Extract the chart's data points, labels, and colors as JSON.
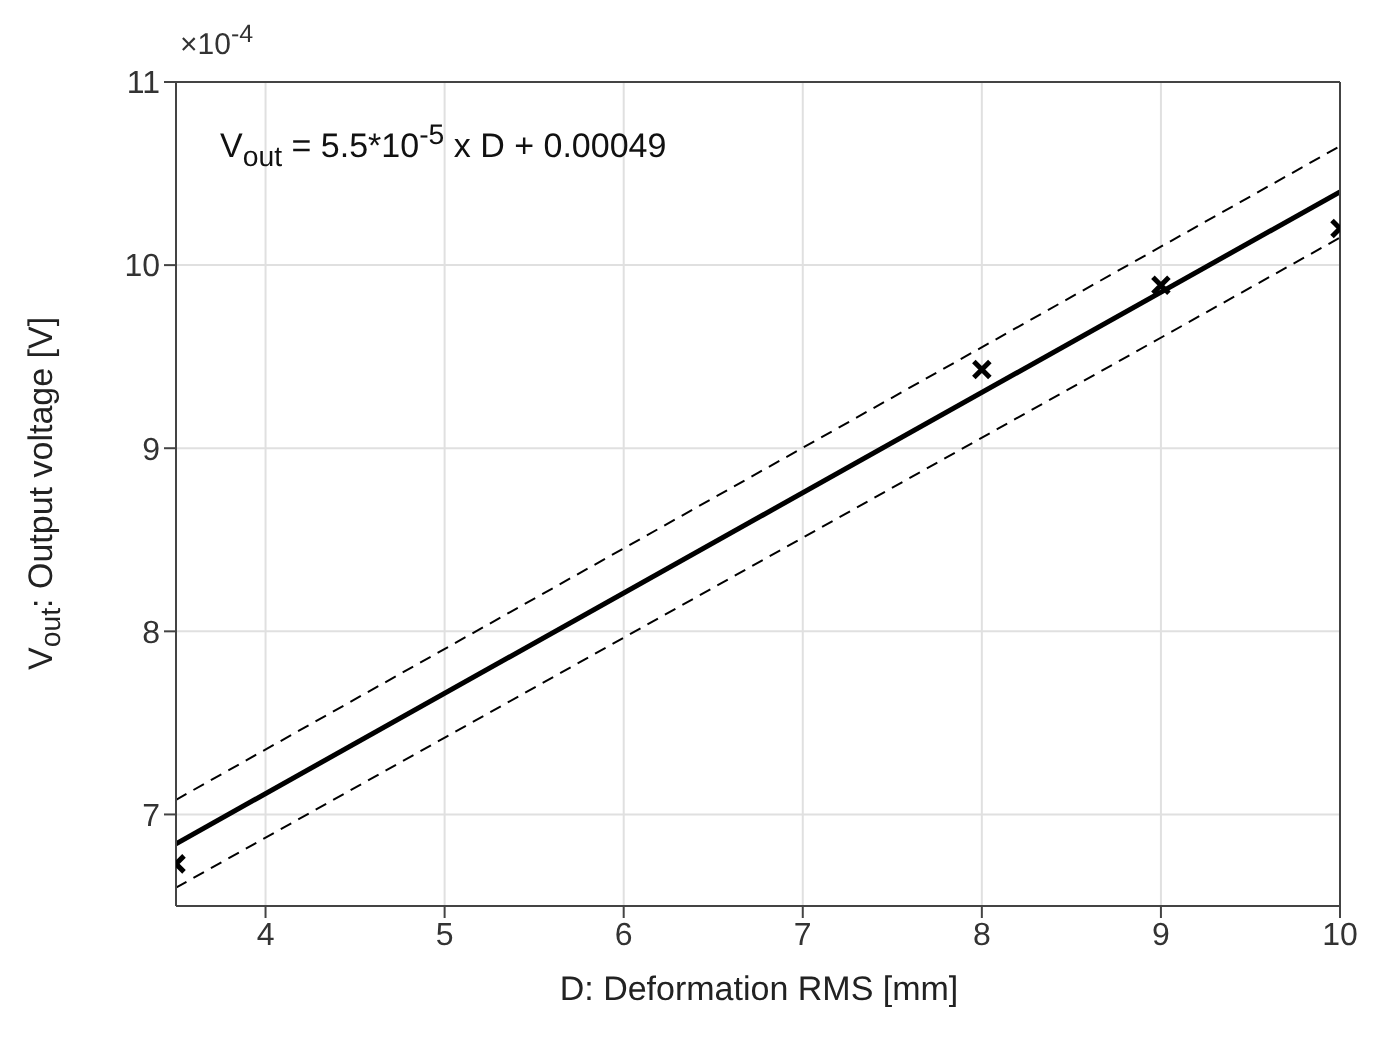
{
  "chart_data": {
    "type": "scatter",
    "xlabel": "D: Deformation RMS [mm]",
    "ylabel": "V$_{out}$: Output voltage [V]",
    "annotations": [
      "×10$^{-4}$",
      "V$_{out}$ = 5.5*10$^{-5}$ x D + 0.00049"
    ],
    "xlim": [
      3.5,
      10
    ],
    "xticks": [
      4,
      5,
      6,
      7,
      8,
      9,
      10
    ],
    "ylim": [
      6.5,
      11
    ],
    "yticks": [
      7,
      8,
      9,
      10,
      11
    ],
    "grid": true,
    "series": [
      {
        "type": "line",
        "color": "#000000",
        "x": [
          3.5,
          10
        ],
        "values": [
          6.84,
          10.4
        ],
        "line_style": "solid",
        "marker": "none"
      },
      {
        "type": "line",
        "color": "#000000",
        "x": [
          3.5,
          10
        ],
        "values": [
          7.08,
          10.65
        ],
        "line_style": "dashed",
        "marker": "none"
      },
      {
        "type": "line",
        "color": "#000000",
        "x": [
          3.5,
          10
        ],
        "values": [
          6.6,
          10.15
        ],
        "line_style": "dashed",
        "marker": "none"
      },
      {
        "color": "#000000",
        "x": [
          3.5,
          8,
          9,
          10
        ],
        "values": [
          6.73,
          9.43,
          9.89,
          10.2
        ],
        "marker": "cross"
      }
    ]
  }
}
